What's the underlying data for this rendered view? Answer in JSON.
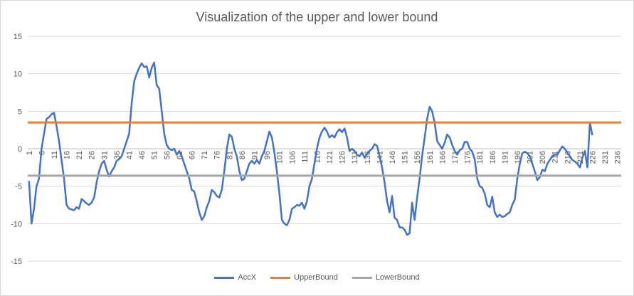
{
  "chart_data": {
    "type": "line",
    "title": "Visualization of the upper and lower bound",
    "xlabel": "",
    "ylabel": "",
    "ylim": [
      -15,
      15
    ],
    "yticks": [
      -15,
      -10,
      -5,
      0,
      5,
      10,
      15
    ],
    "x_count": 237,
    "xtick_labels": [
      "1",
      "6",
      "11",
      "16",
      "21",
      "26",
      "31",
      "36",
      "41",
      "46",
      "51",
      "56",
      "61",
      "66",
      "71",
      "76",
      "81",
      "86",
      "91",
      "96",
      "101",
      "106",
      "111",
      "116",
      "121",
      "126",
      "131",
      "136",
      "141",
      "146",
      "151",
      "156",
      "161",
      "166",
      "171",
      "176",
      "181",
      "186",
      "191",
      "196",
      "201",
      "206",
      "211",
      "216",
      "221",
      "226",
      "231",
      "236"
    ],
    "grid": "horizontal",
    "legend_position": "bottom",
    "series": [
      {
        "name": "AccX",
        "color": "#4472c4",
        "points": [
          [
            1,
            -4.3
          ],
          [
            2,
            -10
          ],
          [
            3,
            -8
          ],
          [
            4,
            -5
          ],
          [
            5,
            -4
          ],
          [
            6,
            0
          ],
          [
            7,
            2
          ],
          [
            8,
            4
          ],
          [
            9,
            4.2
          ],
          [
            10,
            4.6
          ],
          [
            11,
            4.8
          ],
          [
            12,
            3
          ],
          [
            13,
            1
          ],
          [
            14,
            -1.5
          ],
          [
            15,
            -4
          ],
          [
            16,
            -7.5
          ],
          [
            17,
            -8
          ],
          [
            18,
            -8.1
          ],
          [
            19,
            -8.2
          ],
          [
            20,
            -7.8
          ],
          [
            21,
            -8
          ],
          [
            22,
            -6.7
          ],
          [
            23,
            -7
          ],
          [
            24,
            -7.3
          ],
          [
            25,
            -7.5
          ],
          [
            26,
            -7.2
          ],
          [
            27,
            -6.5
          ],
          [
            28,
            -4.5
          ],
          [
            29,
            -3
          ],
          [
            30,
            -2
          ],
          [
            31,
            -1.6
          ],
          [
            32,
            -2.8
          ],
          [
            33,
            -3.7
          ],
          [
            34,
            -3
          ],
          [
            35,
            -2.5
          ],
          [
            36,
            -1.6
          ],
          [
            37,
            -1.4
          ],
          [
            38,
            -1
          ],
          [
            39,
            0
          ],
          [
            40,
            1
          ],
          [
            41,
            2
          ],
          [
            42,
            6
          ],
          [
            43,
            9
          ],
          [
            44,
            10
          ],
          [
            45,
            10.8
          ],
          [
            46,
            11.4
          ],
          [
            47,
            10.9
          ],
          [
            48,
            11
          ],
          [
            49,
            9.5
          ],
          [
            50,
            10.8
          ],
          [
            51,
            11.5
          ],
          [
            52,
            8.5
          ],
          [
            53,
            8
          ],
          [
            54,
            5
          ],
          [
            55,
            2
          ],
          [
            56,
            0.5
          ],
          [
            57,
            0
          ],
          [
            58,
            -0.2
          ],
          [
            59,
            0
          ],
          [
            60,
            -0.8
          ],
          [
            61,
            -0.3
          ],
          [
            62,
            -1
          ],
          [
            63,
            -2
          ],
          [
            64,
            -3
          ],
          [
            65,
            -4
          ],
          [
            66,
            -5.5
          ],
          [
            67,
            -5.7
          ],
          [
            68,
            -7
          ],
          [
            69,
            -8.5
          ],
          [
            70,
            -9.5
          ],
          [
            71,
            -9
          ],
          [
            72,
            -7.8
          ],
          [
            73,
            -7
          ],
          [
            74,
            -5.5
          ],
          [
            75,
            -5.8
          ],
          [
            76,
            -6.3
          ],
          [
            77,
            -6.5
          ],
          [
            78,
            -5.5
          ],
          [
            79,
            -3
          ],
          [
            80,
            0
          ],
          [
            81,
            1.9
          ],
          [
            82,
            1.6
          ],
          [
            83,
            0
          ],
          [
            84,
            -1
          ],
          [
            85,
            -3
          ],
          [
            86,
            -4.2
          ],
          [
            87,
            -4
          ],
          [
            88,
            -3
          ],
          [
            89,
            -2
          ],
          [
            90,
            -1.6
          ],
          [
            91,
            -2
          ],
          [
            92,
            -1.5
          ],
          [
            93,
            -2
          ],
          [
            94,
            -1
          ],
          [
            95,
            -0.3
          ],
          [
            96,
            1
          ],
          [
            97,
            2.3
          ],
          [
            98,
            1.5
          ],
          [
            99,
            -0.5
          ],
          [
            100,
            -3
          ],
          [
            101,
            -6
          ],
          [
            102,
            -9.5
          ],
          [
            103,
            -10
          ],
          [
            104,
            -10.2
          ],
          [
            105,
            -9.5
          ],
          [
            106,
            -8
          ],
          [
            107,
            -7.8
          ],
          [
            108,
            -7.5
          ],
          [
            109,
            -7.6
          ],
          [
            110,
            -7.2
          ],
          [
            111,
            -8
          ],
          [
            112,
            -7
          ],
          [
            113,
            -5
          ],
          [
            114,
            -4
          ],
          [
            115,
            -2
          ],
          [
            116,
            0
          ],
          [
            117,
            1.5
          ],
          [
            118,
            2.3
          ],
          [
            119,
            2.8
          ],
          [
            120,
            2.3
          ],
          [
            121,
            1.5
          ],
          [
            122,
            1.8
          ],
          [
            123,
            1.5
          ],
          [
            124,
            2.2
          ],
          [
            125,
            2.6
          ],
          [
            126,
            2.2
          ],
          [
            127,
            2.7
          ],
          [
            128,
            1.5
          ],
          [
            129,
            -0.3
          ],
          [
            130,
            0
          ],
          [
            131,
            -0.3
          ],
          [
            132,
            -0.8
          ],
          [
            133,
            -1
          ],
          [
            134,
            -0.5
          ],
          [
            135,
            -1.2
          ],
          [
            136,
            -0.7
          ],
          [
            137,
            -0.3
          ],
          [
            138,
            0
          ],
          [
            139,
            0.6
          ],
          [
            140,
            0.4
          ],
          [
            141,
            -1
          ],
          [
            142,
            -2.5
          ],
          [
            143,
            -4.5
          ],
          [
            144,
            -7
          ],
          [
            145,
            -8.5
          ],
          [
            146,
            -6.3
          ],
          [
            147,
            -9.2
          ],
          [
            148,
            -9.5
          ],
          [
            149,
            -10.5
          ],
          [
            150,
            -10.5
          ],
          [
            151,
            -10.8
          ],
          [
            152,
            -11.5
          ],
          [
            153,
            -11.3
          ],
          [
            154,
            -7.2
          ],
          [
            155,
            -9.5
          ],
          [
            156,
            -6.5
          ],
          [
            157,
            -4
          ],
          [
            158,
            -1
          ],
          [
            159,
            1.5
          ],
          [
            160,
            4
          ],
          [
            161,
            5.6
          ],
          [
            162,
            5
          ],
          [
            163,
            3.5
          ],
          [
            164,
            1
          ],
          [
            165,
            0.5
          ],
          [
            166,
            0
          ],
          [
            167,
            0.8
          ],
          [
            168,
            1.9
          ],
          [
            169,
            1.5
          ],
          [
            170,
            0.5
          ],
          [
            171,
            -0.3
          ],
          [
            172,
            -0.8
          ],
          [
            173,
            -0.2
          ],
          [
            174,
            0
          ],
          [
            175,
            0.9
          ],
          [
            176,
            0.9
          ],
          [
            177,
            0
          ],
          [
            178,
            -0.4
          ],
          [
            179,
            -1.4
          ],
          [
            180,
            -4
          ],
          [
            181,
            -5
          ],
          [
            182,
            -5.2
          ],
          [
            183,
            -6
          ],
          [
            184,
            -7.5
          ],
          [
            185,
            -7.8
          ],
          [
            186,
            -6.4
          ],
          [
            187,
            -8.5
          ],
          [
            188,
            -9.1
          ],
          [
            189,
            -8.8
          ],
          [
            190,
            -9.1
          ],
          [
            191,
            -9
          ],
          [
            192,
            -8.7
          ],
          [
            193,
            -8.5
          ],
          [
            194,
            -7.5
          ],
          [
            195,
            -6.8
          ],
          [
            196,
            -4
          ],
          [
            197,
            -2
          ],
          [
            198,
            -0.6
          ],
          [
            199,
            -0.4
          ],
          [
            200,
            -0.6
          ],
          [
            201,
            -1
          ],
          [
            202,
            -2
          ],
          [
            203,
            -3
          ],
          [
            204,
            -4.2
          ],
          [
            205,
            -3.8
          ],
          [
            206,
            -2.8
          ],
          [
            207,
            -3
          ],
          [
            208,
            -2
          ],
          [
            209,
            -1.5
          ],
          [
            210,
            -1
          ],
          [
            211,
            -0.8
          ],
          [
            212,
            -0.8
          ],
          [
            213,
            -0.2
          ],
          [
            214,
            0.3
          ],
          [
            215,
            0
          ],
          [
            216,
            -0.5
          ],
          [
            217,
            -1
          ],
          [
            218,
            -1.5
          ],
          [
            219,
            -1.7
          ],
          [
            220,
            -2
          ],
          [
            221,
            -2.5
          ],
          [
            222,
            -1.2
          ],
          [
            223,
            -0.3
          ],
          [
            224,
            -2.5
          ],
          [
            225,
            3.5
          ],
          [
            226,
            1.8
          ]
        ]
      },
      {
        "name": "UpperBound",
        "color": "#ed7d31",
        "constant": 3.5
      },
      {
        "name": "LowerBound",
        "color": "#a5a5a5",
        "constant": -3.6
      }
    ]
  }
}
